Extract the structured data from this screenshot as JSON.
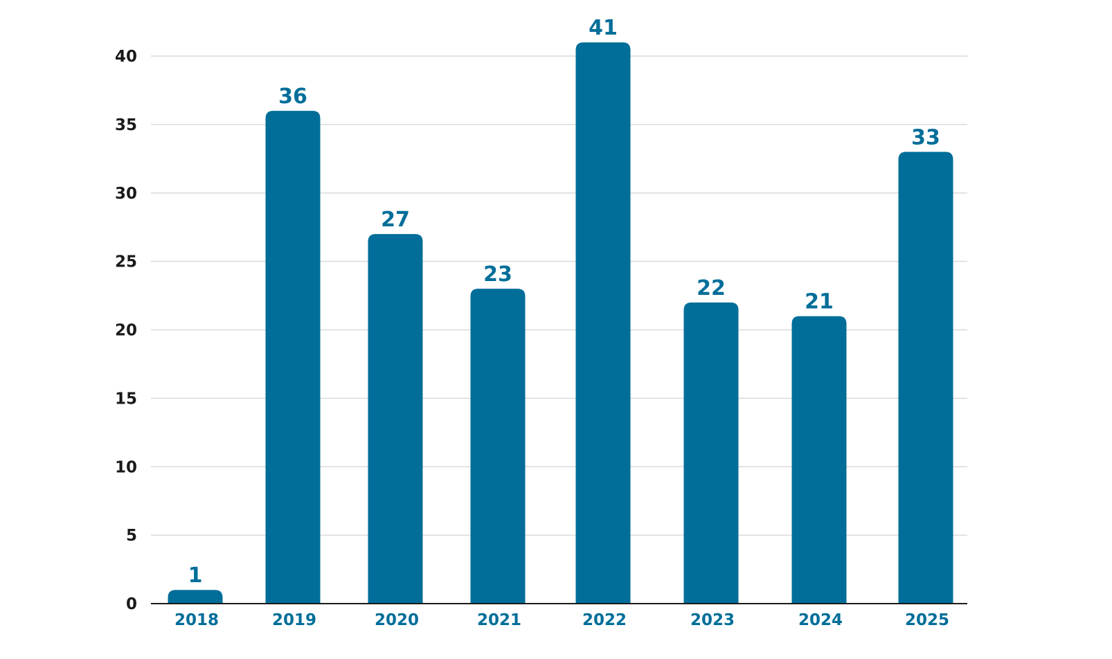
{
  "chart_data": {
    "type": "bar",
    "title": "",
    "xlabel": "",
    "ylabel": "",
    "categories": [
      "2018",
      "2019",
      "2020",
      "2021",
      "2022",
      "2023",
      "2024",
      "2025"
    ],
    "values": [
      1,
      36,
      27,
      23,
      41,
      22,
      21,
      33
    ],
    "data_labels": [
      "1",
      "36",
      "27",
      "23",
      "41",
      "22",
      "21",
      "33"
    ],
    "ylim": [
      0,
      40
    ],
    "yticks": [
      0,
      5,
      10,
      15,
      20,
      25,
      30,
      35,
      40
    ],
    "ytick_labels": [
      "0",
      "5",
      "10",
      "15",
      "20",
      "25",
      "30",
      "35",
      "40"
    ],
    "grid": true,
    "legend": "none",
    "colors": {
      "bar": "#006e99",
      "data_label": "#006e99",
      "x_tick_label": "#006e99",
      "y_tick_label": "#1a1a1a",
      "grid": "#d9d9d9",
      "axis": "#1a1a1a"
    }
  }
}
